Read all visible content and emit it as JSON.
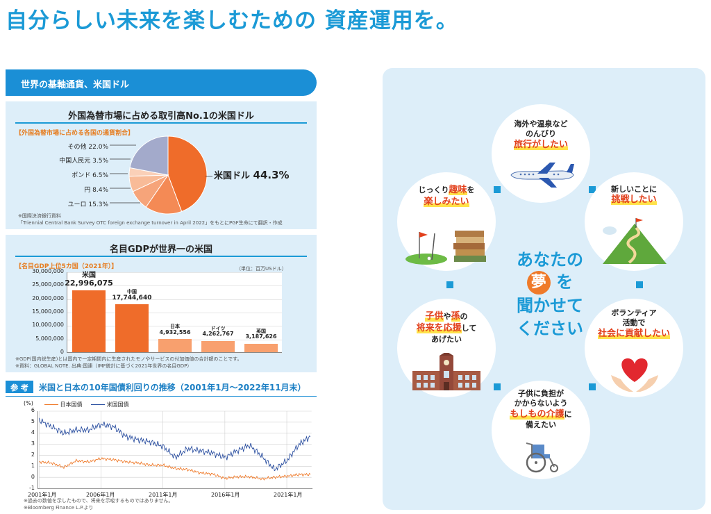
{
  "page": {
    "headline": "自分らしい未来を楽しむための 資産運用を。",
    "section_banner": "世界の基軸通貨、米国ドル"
  },
  "fx_panel": {
    "title": "外国為替市場に占める取引高No.1の米国ドル",
    "subtitle": "【外国為替市場に占める各国の通貨割合】",
    "notes": [
      "※国際決済銀行資料",
      "「Triennial Central Bank Survey OTC foreign exchange turnover in April 2022」をもとにPGF生命にて翻訳・作成"
    ],
    "main_label": "米国ドル",
    "main_value": "44.3%",
    "slice_labels": [
      "その他 22.0%",
      "中国人民元 3.5%",
      "ポンド 6.5%",
      "円 8.4%",
      "ユーロ 15.3%"
    ]
  },
  "gdp_panel": {
    "title": "名目GDPが世界一の米国",
    "subtitle": "【名目GDP上位5カ国（2021年）】",
    "unit": "（単位：百万USドル）",
    "notes": [
      "※GDP(国内総生産)とは国内で一定期間内に生産されたモノやサービスの付加価値の合計額のことです。",
      "※資料：GLOBAL NOTE. 出典:国連（IMF統計に基づく2021年世界の名目GDP）"
    ]
  },
  "reference": {
    "badge": "参 考",
    "title": "米国と日本の10年国債利回りの推移（2001年1月～2022年11月末）",
    "notes": [
      "※過去の数値を示したもので、将来を示唆するものではありません。",
      "※Bloomberg Finance L.P.より"
    ]
  },
  "dreams": {
    "center": [
      "あなたの",
      "夢",
      "を",
      "聞かせて",
      "ください"
    ],
    "travel": {
      "line1": "海外や温泉など",
      "line2": "のんびり",
      "hl": "旅行がしたい"
    },
    "challenge": {
      "line1": "新しいことに",
      "hl": "挑戦したい"
    },
    "volunteer": {
      "line1": "ボランティア",
      "line2": "活動で",
      "hl": "社会に貢献したい"
    },
    "care": {
      "line1": "子供に負担が",
      "line2": "かからないよう",
      "hl": "もしもの介護",
      "tail": "に",
      "line4": "備えたい"
    },
    "children": {
      "hl1": "子供",
      "mid1": "や",
      "hl2": "孫",
      "mid2": "の",
      "hl3": "将来を応援",
      "mid3": "して",
      "line3": "あげたい"
    },
    "hobby": {
      "pre": "じっくり",
      "hl1": "趣味",
      "mid": "を",
      "hl2": "楽しみたい"
    }
  },
  "colors": {
    "accent": "#1b9ad6",
    "orange": "#ef6c2a",
    "panel": "#ddeef9"
  },
  "chart_data": [
    {
      "type": "pie",
      "title": "外国為替市場に占める各国の通貨割合",
      "categories": [
        "米国ドル",
        "ユーロ",
        "円",
        "ポンド",
        "中国人民元",
        "その他"
      ],
      "values": [
        44.3,
        15.3,
        8.4,
        6.5,
        3.5,
        22.0
      ],
      "colors": [
        "#ef6c2a",
        "#f48a55",
        "#f6a47a",
        "#f8bb98",
        "#fad0b8",
        "#a3aacb"
      ]
    },
    {
      "type": "bar",
      "title": "名目GDP上位5カ国（2021年）",
      "categories": [
        "米国",
        "中国",
        "日本",
        "ドイツ",
        "英国"
      ],
      "values": [
        22996075,
        17744640,
        4932556,
        4262767,
        3187626
      ],
      "value_labels": [
        "22,996,075",
        "17,744,640",
        "4,932,556",
        "4,262,767",
        "3,187,626"
      ],
      "yticks": [
        "30,000,000",
        "25,000,000",
        "20,000,000",
        "15,000,000",
        "10,000,000",
        "5,000,000",
        "0"
      ],
      "ylim": [
        0,
        30000000
      ],
      "ylabel": "百万USドル"
    },
    {
      "type": "line",
      "title": "米国と日本の10年国債利回りの推移",
      "ylabel": "(%)",
      "ylim": [
        -1,
        6
      ],
      "yticks": [
        "6",
        "5",
        "4",
        "3",
        "2",
        "1",
        "0",
        "-1"
      ],
      "xticks": [
        "2001年1月",
        "2006年1月",
        "2011年1月",
        "2016年1月",
        "2021年1月"
      ],
      "x": [
        2001,
        2002,
        2003,
        2004,
        2005,
        2006,
        2007,
        2008,
        2009,
        2010,
        2011,
        2012,
        2013,
        2014,
        2015,
        2016,
        2017,
        2018,
        2019,
        2020,
        2021,
        2022,
        2022.9
      ],
      "series": [
        {
          "name": "日本国債",
          "color": "#ef7a2a",
          "values": [
            1.4,
            1.3,
            0.9,
            1.5,
            1.4,
            1.7,
            1.6,
            1.4,
            1.3,
            1.1,
            1.1,
            0.8,
            0.7,
            0.4,
            0.3,
            -0.1,
            0.05,
            0.05,
            -0.15,
            0.0,
            0.1,
            0.25,
            0.25
          ]
        },
        {
          "name": "米国国債",
          "color": "#2b4fa0",
          "values": [
            5.2,
            4.6,
            4.0,
            4.3,
            4.3,
            4.8,
            4.6,
            3.7,
            3.4,
            3.2,
            2.8,
            1.8,
            2.6,
            2.4,
            2.2,
            1.8,
            2.4,
            2.9,
            1.9,
            0.7,
            1.5,
            3.0,
            3.7
          ]
        }
      ]
    }
  ]
}
